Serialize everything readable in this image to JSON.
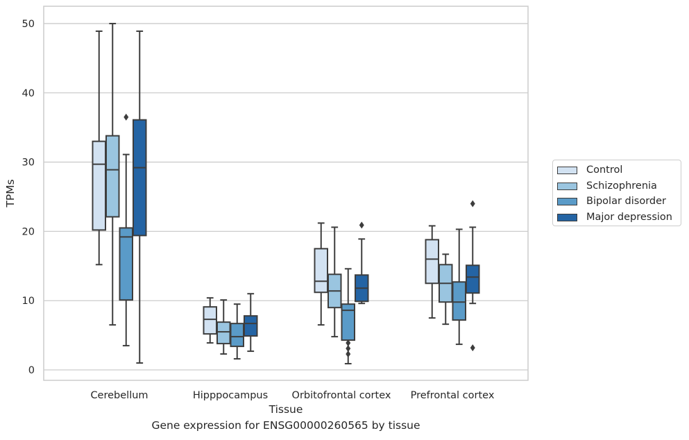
{
  "chart_data": {
    "type": "box",
    "title": "",
    "caption": "Gene expression for ENSG00000260565 by tissue",
    "xlabel": "Tissue",
    "ylabel": "TPMs",
    "ylim": [
      -1.5,
      52.5
    ],
    "yticks": [
      0,
      10,
      20,
      30,
      40,
      50
    ],
    "grid": "horizontal",
    "legend_position": "right",
    "categories": [
      "Cerebellum",
      "Hipppocampus",
      "Orbitofrontal cortex",
      "Prefrontal cortex"
    ],
    "series": [
      {
        "name": "Control",
        "color": "#d2e2f2",
        "boxes": [
          {
            "whislo": 15.2,
            "q1": 20.2,
            "med": 29.7,
            "q3": 33.0,
            "whishi": 48.9,
            "fliers": []
          },
          {
            "whislo": 3.9,
            "q1": 5.2,
            "med": 7.3,
            "q3": 9.1,
            "whishi": 10.4,
            "fliers": []
          },
          {
            "whislo": 6.5,
            "q1": 11.2,
            "med": 12.8,
            "q3": 17.5,
            "whishi": 21.2,
            "fliers": []
          },
          {
            "whislo": 7.5,
            "q1": 12.5,
            "med": 16.0,
            "q3": 18.8,
            "whishi": 20.8,
            "fliers": []
          }
        ]
      },
      {
        "name": "Schizophrenia",
        "color": "#9ac5e0",
        "boxes": [
          {
            "whislo": 6.5,
            "q1": 22.1,
            "med": 28.9,
            "q3": 33.8,
            "whishi": 50.0,
            "fliers": []
          },
          {
            "whislo": 2.3,
            "q1": 3.8,
            "med": 5.5,
            "q3": 6.9,
            "whishi": 10.1,
            "fliers": []
          },
          {
            "whislo": 4.8,
            "q1": 9.0,
            "med": 11.4,
            "q3": 13.8,
            "whishi": 20.6,
            "fliers": []
          },
          {
            "whislo": 6.6,
            "q1": 9.8,
            "med": 12.5,
            "q3": 15.2,
            "whishi": 16.7,
            "fliers": []
          }
        ]
      },
      {
        "name": "Bipolar disorder",
        "color": "#5a9bc8",
        "boxes": [
          {
            "whislo": 3.5,
            "q1": 10.1,
            "med": 19.2,
            "q3": 20.5,
            "whishi": 31.1,
            "fliers": [
              36.5
            ]
          },
          {
            "whislo": 1.6,
            "q1": 3.4,
            "med": 4.8,
            "q3": 6.7,
            "whishi": 9.5,
            "fliers": []
          },
          {
            "whislo": 0.9,
            "q1": 4.3,
            "med": 8.6,
            "q3": 9.5,
            "whishi": 14.6,
            "fliers": [
              2.3,
              3.1,
              3.9
            ]
          },
          {
            "whislo": 3.7,
            "q1": 7.2,
            "med": 9.8,
            "q3": 12.7,
            "whishi": 20.3,
            "fliers": []
          }
        ]
      },
      {
        "name": "Major depression",
        "color": "#2464a4",
        "boxes": [
          {
            "whislo": 1.0,
            "q1": 19.4,
            "med": 29.2,
            "q3": 36.1,
            "whishi": 48.9,
            "fliers": []
          },
          {
            "whislo": 2.7,
            "q1": 4.9,
            "med": 6.7,
            "q3": 7.8,
            "whishi": 11.0,
            "fliers": []
          },
          {
            "whislo": 9.6,
            "q1": 9.9,
            "med": 11.8,
            "q3": 13.7,
            "whishi": 18.9,
            "fliers": [
              20.9
            ]
          },
          {
            "whislo": 9.6,
            "q1": 11.1,
            "med": 13.4,
            "q3": 15.1,
            "whishi": 20.6,
            "fliers": [
              3.2,
              24.0
            ]
          }
        ]
      }
    ]
  }
}
